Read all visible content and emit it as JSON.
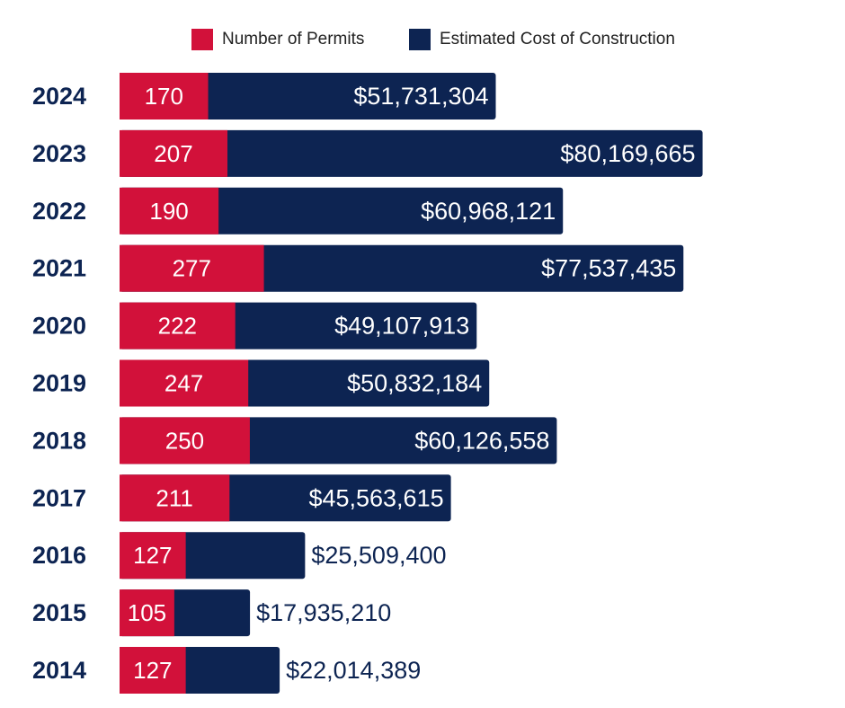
{
  "colors": {
    "permits": "#D2113A",
    "cost": "#0D2452",
    "label_light": "#FFFFFF",
    "label_dark": "#0D2452",
    "year_text": "#0D2452"
  },
  "legend": {
    "permits_label": "Number of Permits",
    "cost_label": "Estimated Cost of Construction"
  },
  "chart_data": {
    "type": "bar",
    "orientation": "horizontal",
    "stacked": false,
    "title": "",
    "xlabel": "",
    "ylabel": "",
    "grid": false,
    "legend_position": "top-center",
    "categories": [
      "2024",
      "2023",
      "2022",
      "2021",
      "2020",
      "2019",
      "2018",
      "2017",
      "2016",
      "2015",
      "2014"
    ],
    "series": [
      {
        "name": "Number of Permits",
        "values": [
          170,
          207,
          190,
          277,
          222,
          247,
          250,
          211,
          127,
          105,
          127
        ],
        "labels": [
          "170",
          "207",
          "190",
          "277",
          "222",
          "247",
          "250",
          "211",
          "127",
          "105",
          "127"
        ]
      },
      {
        "name": "Estimated Cost of Construction",
        "values": [
          51731304,
          80169665,
          60968121,
          77537435,
          49107913,
          50832184,
          60126558,
          45563615,
          25509400,
          17935210,
          22014389
        ],
        "labels": [
          "$51,731,304",
          "$80,169,665",
          "$60,968,121",
          "$77,537,435",
          "$49,107,913",
          "$50,832,184",
          "$60,126,558",
          "$45,563,615",
          "$25,509,400",
          "$17,935,210",
          "$22,014,389"
        ]
      }
    ]
  }
}
